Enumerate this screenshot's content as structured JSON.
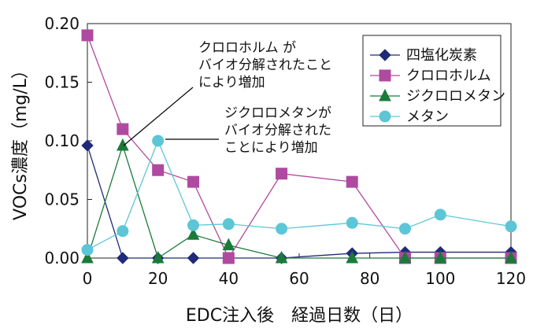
{
  "chart_data": {
    "type": "line",
    "xlabel": "EDC注入後　経過日数（日）",
    "ylabel": "VOCs濃度（mg/L）",
    "xlim": [
      0,
      120
    ],
    "ylim": [
      0,
      0.2
    ],
    "xticks": [
      "0",
      "20",
      "40",
      "60",
      "80",
      "100",
      "120"
    ],
    "yticks": [
      "0.00",
      "0.05",
      "0.10",
      "0.15",
      "0.20"
    ],
    "grid": false,
    "legend_position": "top-right",
    "series": [
      {
        "name": "四塩化炭素",
        "color": "#1f2a78",
        "marker": "diamond",
        "points": [
          [
            0,
            0.096
          ],
          [
            10,
            0.0
          ],
          [
            20,
            0.0
          ],
          [
            30,
            0.0
          ],
          [
            40,
            0.0
          ],
          [
            55,
            0.0
          ],
          [
            75,
            0.004
          ],
          [
            90,
            0.005
          ],
          [
            100,
            0.005
          ],
          [
            120,
            0.005
          ]
        ]
      },
      {
        "name": "クロロホルム",
        "color": "#b04aa0",
        "marker": "square",
        "points": [
          [
            0,
            0.19
          ],
          [
            10,
            0.11
          ],
          [
            20,
            0.075
          ],
          [
            30,
            0.065
          ],
          [
            40,
            0.0
          ],
          [
            55,
            0.072
          ],
          [
            75,
            0.065
          ],
          [
            90,
            0.0
          ],
          [
            100,
            0.0
          ],
          [
            120,
            0.0
          ]
        ]
      },
      {
        "name": "ジクロロメタン",
        "color": "#1a7a3a",
        "marker": "triangle",
        "points": [
          [
            0,
            0.0
          ],
          [
            10,
            0.096
          ],
          [
            20,
            0.0
          ],
          [
            30,
            0.02
          ],
          [
            40,
            0.011
          ],
          [
            55,
            0.0
          ],
          [
            75,
            0.0
          ],
          [
            90,
            0.0
          ],
          [
            100,
            0.0
          ],
          [
            120,
            0.0
          ]
        ]
      },
      {
        "name": "メタン",
        "color": "#5cc6d6",
        "marker": "circle",
        "points": [
          [
            0,
            0.007
          ],
          [
            10,
            0.023
          ],
          [
            20,
            0.1
          ],
          [
            30,
            0.028
          ],
          [
            40,
            0.029
          ],
          [
            55,
            0.025
          ],
          [
            75,
            0.03
          ],
          [
            90,
            0.025
          ],
          [
            100,
            0.037
          ],
          [
            120,
            0.027
          ]
        ]
      }
    ],
    "annotations": [
      {
        "lines": [
          "クロロホルム が",
          "バイオ分解されたこと",
          "により増加"
        ],
        "x": 10,
        "y": 0.096
      },
      {
        "lines": [
          "ジクロロメタンが",
          "バイオ分解された",
          "ことにより増加"
        ],
        "x": 20,
        "y": 0.1
      }
    ]
  }
}
